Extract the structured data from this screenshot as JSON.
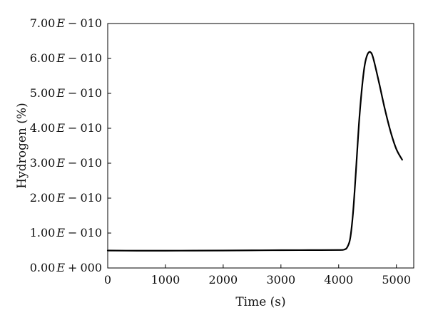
{
  "chart_data": {
    "type": "line",
    "title": "",
    "xlabel": "Time (s)",
    "ylabel": "Hydrogen (%)",
    "xlim": [
      0,
      5300
    ],
    "ylim": [
      0,
      7e-10
    ],
    "grid": false,
    "x_ticks": [
      {
        "value": 0,
        "label": "0"
      },
      {
        "value": 1000,
        "label": "1000"
      },
      {
        "value": 2000,
        "label": "2000"
      },
      {
        "value": 3000,
        "label": "3000"
      },
      {
        "value": 4000,
        "label": "4000"
      },
      {
        "value": 5000,
        "label": "5000"
      }
    ],
    "y_ticks": [
      {
        "value": 0,
        "label_mantissa": "0.00",
        "label_sign": "+",
        "label_exp": "000"
      },
      {
        "value": 1e-10,
        "label_mantissa": "1.00",
        "label_sign": "−",
        "label_exp": "010"
      },
      {
        "value": 2e-10,
        "label_mantissa": "2.00",
        "label_sign": "−",
        "label_exp": "010"
      },
      {
        "value": 3e-10,
        "label_mantissa": "3.00",
        "label_sign": "−",
        "label_exp": "010"
      },
      {
        "value": 4e-10,
        "label_mantissa": "4.00",
        "label_sign": "−",
        "label_exp": "010"
      },
      {
        "value": 5e-10,
        "label_mantissa": "5.00",
        "label_sign": "−",
        "label_exp": "010"
      },
      {
        "value": 6e-10,
        "label_mantissa": "6.00",
        "label_sign": "−",
        "label_exp": "010"
      },
      {
        "value": 7e-10,
        "label_mantissa": "7.00",
        "label_sign": "−",
        "label_exp": "010"
      }
    ],
    "series": [
      {
        "color": "#000000",
        "points": [
          [
            0,
            5e-11
          ],
          [
            500,
            4.95e-11
          ],
          [
            1000,
            4.95e-11
          ],
          [
            1500,
            4.97e-11
          ],
          [
            2000,
            5e-11
          ],
          [
            2500,
            5.05e-11
          ],
          [
            3000,
            5.1e-11
          ],
          [
            3500,
            5.12e-11
          ],
          [
            4000,
            5.15e-11
          ],
          [
            4100,
            5.3e-11
          ],
          [
            4150,
            6e-11
          ],
          [
            4200,
            8.5e-11
          ],
          [
            4250,
            1.6e-10
          ],
          [
            4300,
            2.8e-10
          ],
          [
            4350,
            4.1e-10
          ],
          [
            4400,
            5.1e-10
          ],
          [
            4450,
            5.8e-10
          ],
          [
            4500,
            6.12e-10
          ],
          [
            4550,
            6.18e-10
          ],
          [
            4600,
            6e-10
          ],
          [
            4700,
            5.3e-10
          ],
          [
            4800,
            4.55e-10
          ],
          [
            4900,
            3.9e-10
          ],
          [
            5000,
            3.4e-10
          ],
          [
            5100,
            3.1e-10
          ]
        ]
      }
    ]
  }
}
